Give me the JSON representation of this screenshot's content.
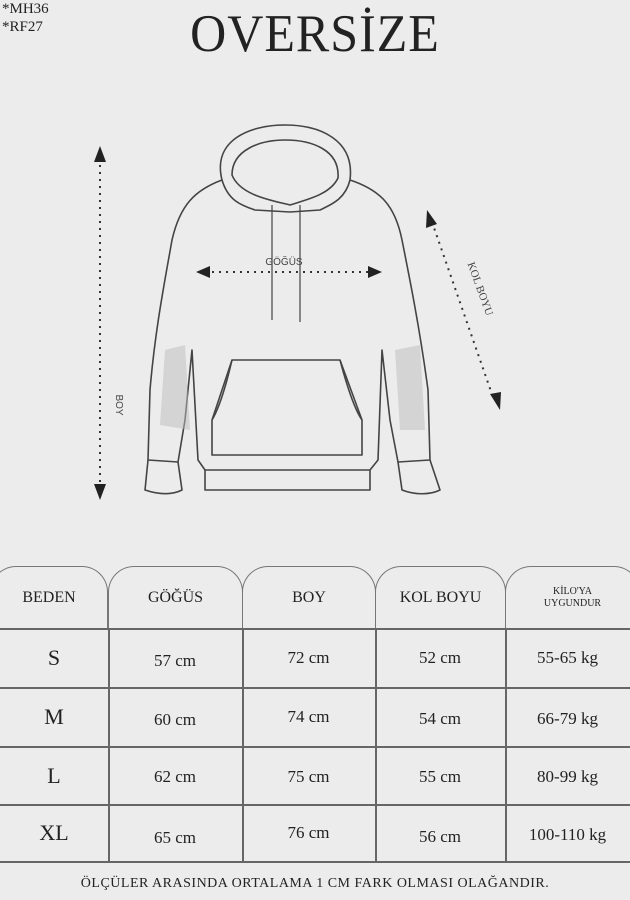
{
  "codes": [
    "*MH36",
    "*RF27"
  ],
  "title": "OVERSİZE",
  "diagram": {
    "labels": {
      "chest": "GÖĞÜS",
      "length": "BOY",
      "sleeve": "KOL BOYU"
    }
  },
  "table": {
    "headers": [
      "BEDEN",
      "GÖĞÜS",
      "BOY",
      "KOL BOYU",
      "KİLO'YA UYGUNDUR"
    ],
    "header_last_lines": [
      "KİLO'YA",
      "UYGUNDUR"
    ],
    "rows": [
      [
        "S",
        "57 cm",
        "72 cm",
        "52  cm",
        "55-65 kg"
      ],
      [
        "M",
        "60 cm",
        "74 cm",
        "54 cm",
        "66-79 kg"
      ],
      [
        "L",
        "62 cm",
        "75 cm",
        "55 cm",
        "80-99 kg"
      ],
      [
        "XL",
        "65 cm",
        "76 cm",
        "56 cm",
        "100-110 kg"
      ]
    ]
  },
  "note": "ÖLÇÜLER ARASINDA ORTALAMA 1 CM FARK OLMASI OLAĞANDIR."
}
